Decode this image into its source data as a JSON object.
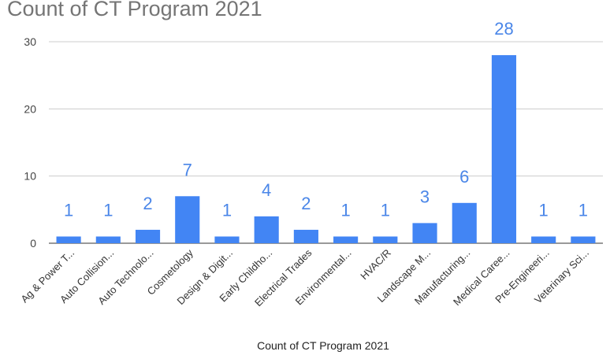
{
  "chart_data": {
    "type": "bar",
    "title": "Count of CT Program 2021",
    "xlabel": "Count of CT Program 2021",
    "ylabel": "",
    "ylim": [
      0,
      30
    ],
    "yticks": [
      "0",
      "10",
      "20",
      "30"
    ],
    "grid": true,
    "bar_color": "#4285f4",
    "label_color": "#4a86e8",
    "categories": [
      "Ag & Power T...",
      "Auto Collision...",
      "Auto Technolo...",
      "Cosmetology",
      "Design & Digit...",
      "Early Childho...",
      "Electrical Trades",
      "Environmental...",
      "HVAC/R",
      "Landscape M...",
      "Manufacturing...",
      "Medical Caree...",
      "Pre-Engineeri...",
      "Veterinary Sci..."
    ],
    "values": [
      1,
      1,
      2,
      7,
      1,
      4,
      2,
      1,
      1,
      3,
      6,
      28,
      1,
      1
    ],
    "data_labels": [
      "1",
      "1",
      "2",
      "7",
      "1",
      "4",
      "2",
      "1",
      "1",
      "3",
      "6",
      "28",
      "1",
      "1"
    ]
  }
}
